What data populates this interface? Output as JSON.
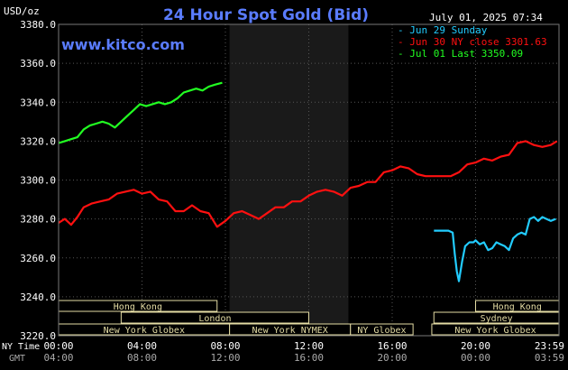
{
  "chart_data": {
    "type": "line",
    "title": "24 Hour Spot Gold (Bid)",
    "website": "www.kitco.com",
    "timestamp": "July 01, 2025 07:34",
    "ylabel": "USD/oz",
    "ylim": [
      3220,
      3380
    ],
    "yticks": [
      "3380.0",
      "3360.0",
      "3340.0",
      "3320.0",
      "3300.0",
      "3280.0",
      "3260.0",
      "3240.0",
      "3220.0"
    ],
    "xlim": [
      0,
      24
    ],
    "ny_time_label": "NY Time",
    "gmt_label": "GMT",
    "x_ticks_ny": [
      "00:00",
      "04:00",
      "08:00",
      "12:00",
      "16:00",
      "20:00",
      "23:59"
    ],
    "x_ticks_gmt": [
      "04:00",
      "08:00",
      "12:00",
      "16:00",
      "20:00",
      "00:00",
      "03:59"
    ],
    "grid": true,
    "legend_position": "top-right",
    "shaded_hours": [
      8.2,
      13.9
    ],
    "colors": {
      "jun29": "#22ccff",
      "jun30": "#ff1010",
      "jul01": "#22ff22",
      "axis_text": "#ffffff",
      "grid": "#555555",
      "title": "#5a7cff",
      "session_fill": "#e4dca4",
      "shade": "#1a1a1a"
    },
    "series": [
      {
        "name": "Jun 29 Sunday",
        "legend": "Jun 29 Sunday",
        "color": "#22ccff",
        "x": [
          18.0,
          18.5,
          18.7,
          18.9,
          19.0,
          19.1,
          19.2,
          19.35,
          19.5,
          19.7,
          19.9,
          20.0,
          20.2,
          20.4,
          20.6,
          20.8,
          21.0,
          21.2,
          21.4,
          21.6,
          21.8,
          22.0,
          22.2,
          22.4,
          22.6,
          22.8,
          23.0,
          23.2,
          23.4,
          23.6,
          23.85
        ],
        "y": [
          3274,
          3274,
          3274,
          3273,
          3262,
          3253,
          3248,
          3258,
          3266,
          3268,
          3268,
          3269,
          3267,
          3268,
          3264,
          3265,
          3268,
          3267,
          3266,
          3264,
          3270,
          3272,
          3273,
          3272,
          3280,
          3281,
          3279,
          3281,
          3280,
          3279,
          3280
        ]
      },
      {
        "name": "Jun 30 NY close 3301.63",
        "legend": "Jun 30 NY close 3301.63",
        "color": "#ff1010",
        "x": [
          0,
          0.3,
          0.6,
          0.9,
          1.2,
          1.6,
          2.0,
          2.4,
          2.8,
          3.2,
          3.6,
          4.0,
          4.4,
          4.8,
          5.2,
          5.6,
          6.0,
          6.4,
          6.8,
          7.2,
          7.6,
          8.0,
          8.4,
          8.8,
          9.2,
          9.6,
          10.0,
          10.4,
          10.8,
          11.2,
          11.6,
          12.0,
          12.4,
          12.8,
          13.2,
          13.6,
          14.0,
          14.4,
          14.8,
          15.2,
          15.6,
          16.0,
          16.4,
          16.8,
          17.2,
          17.6,
          18.0,
          18.4,
          18.8,
          19.2,
          19.6,
          20.0,
          20.4,
          20.8,
          21.2,
          21.6,
          22.0,
          22.4,
          22.8,
          23.2,
          23.6,
          23.9
        ],
        "y": [
          3278,
          3280,
          3277,
          3281,
          3286,
          3288,
          3289,
          3290,
          3293,
          3294,
          3295,
          3293,
          3294,
          3290,
          3289,
          3284,
          3284,
          3287,
          3284,
          3283,
          3276,
          3279,
          3283,
          3284,
          3282,
          3280,
          3283,
          3286,
          3286,
          3289,
          3289,
          3292,
          3294,
          3295,
          3294,
          3292,
          3296,
          3297,
          3299,
          3299,
          3304,
          3305,
          3307,
          3306,
          3303,
          3302,
          3302,
          3302,
          3302,
          3304,
          3308,
          3309,
          3311,
          3310,
          3312,
          3313,
          3319,
          3320,
          3318,
          3317,
          3318,
          3320
        ]
      },
      {
        "name": "Jul 01 Last 3350.09",
        "legend": "Jul 01 Last 3350.09",
        "color": "#22ff22",
        "x": [
          0,
          0.3,
          0.6,
          0.9,
          1.2,
          1.5,
          1.8,
          2.1,
          2.4,
          2.7,
          3.0,
          3.3,
          3.6,
          3.9,
          4.2,
          4.5,
          4.8,
          5.1,
          5.4,
          5.7,
          6.0,
          6.3,
          6.6,
          6.9,
          7.2,
          7.5,
          7.85
        ],
        "y": [
          3319,
          3320,
          3321,
          3322,
          3326,
          3328,
          3329,
          3330,
          3329,
          3327,
          3330,
          3333,
          3336,
          3339,
          3338,
          3339,
          3340,
          3339,
          3340,
          3342,
          3345,
          3346,
          3347,
          3346,
          3348,
          3349,
          3350
        ]
      }
    ],
    "sessions": [
      {
        "label": "Hong Kong",
        "start": 0,
        "end": 7.6,
        "row": 0
      },
      {
        "label": "London",
        "start": 3.0,
        "end": 12.0,
        "row": 1
      },
      {
        "label": "New York Globex",
        "start": 0,
        "end": 8.2,
        "row": 2
      },
      {
        "label": "New York NYMEX",
        "start": 8.2,
        "end": 14.0,
        "row": 2
      },
      {
        "label": "NY Globex",
        "start": 14.0,
        "end": 17.0,
        "row": 2
      },
      {
        "label": "Hong Kong",
        "start": 20.0,
        "end": 24.0,
        "row": 0
      },
      {
        "label": "Sydney",
        "start": 18.0,
        "end": 24.0,
        "row": 1
      },
      {
        "label": "New York Globex",
        "start": 17.9,
        "end": 24.0,
        "row": 2
      }
    ]
  }
}
